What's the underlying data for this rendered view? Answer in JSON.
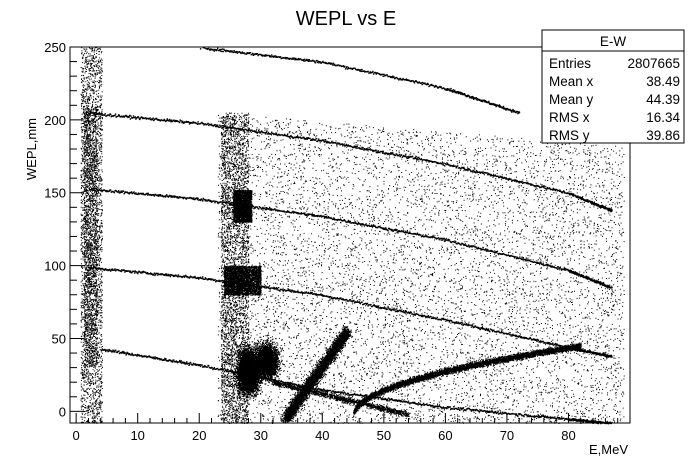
{
  "chart_data": {
    "type": "heatmap",
    "title": "WEPL vs E",
    "xlabel": "E,MeV",
    "ylabel": "WEPL,mm",
    "xlim": [
      -1,
      90
    ],
    "ylim": [
      -8,
      250
    ],
    "x_ticks": [
      0,
      10,
      20,
      30,
      40,
      50,
      60,
      70,
      80
    ],
    "y_ticks": [
      0,
      50,
      100,
      150,
      200,
      250
    ],
    "x_tick_labels": [
      "0",
      "10",
      "20",
      "30",
      "40",
      "50",
      "60",
      "70",
      "80"
    ],
    "y_tick_labels": [
      "0",
      "50",
      "100",
      "150",
      "200",
      "250"
    ],
    "grid": false,
    "marker_color": "#000000",
    "stats_box": {
      "name": "E-W",
      "rows": [
        {
          "label": "Entries",
          "value": "2807665"
        },
        {
          "label": "Mean x",
          "value": "38.49"
        },
        {
          "label": "Mean y",
          "value": "44.39"
        },
        {
          "label": "RMS x",
          "value": "16.34"
        },
        {
          "label": "RMS y",
          "value": "39.86"
        }
      ],
      "placement": "top-right"
    },
    "series": [
      {
        "x": [
          4,
          20,
          40,
          60,
          80,
          87
        ],
        "y": [
          43,
          32,
          15,
          3,
          -5,
          -8
        ]
      },
      {
        "x": [
          2,
          20,
          40,
          60,
          80,
          87
        ],
        "y": [
          99,
          92,
          80,
          63,
          44,
          38
        ]
      },
      {
        "x": [
          2,
          20,
          40,
          60,
          80,
          87
        ],
        "y": [
          153,
          146,
          134,
          118,
          97,
          85
        ]
      },
      {
        "x": [
          2,
          20,
          40,
          60,
          80,
          87
        ],
        "y": [
          205,
          198,
          186,
          170,
          150,
          138
        ]
      },
      {
        "x": [
          20,
          40,
          60,
          72
        ],
        "y": [
          250,
          240,
          222,
          205
        ]
      }
    ]
  }
}
